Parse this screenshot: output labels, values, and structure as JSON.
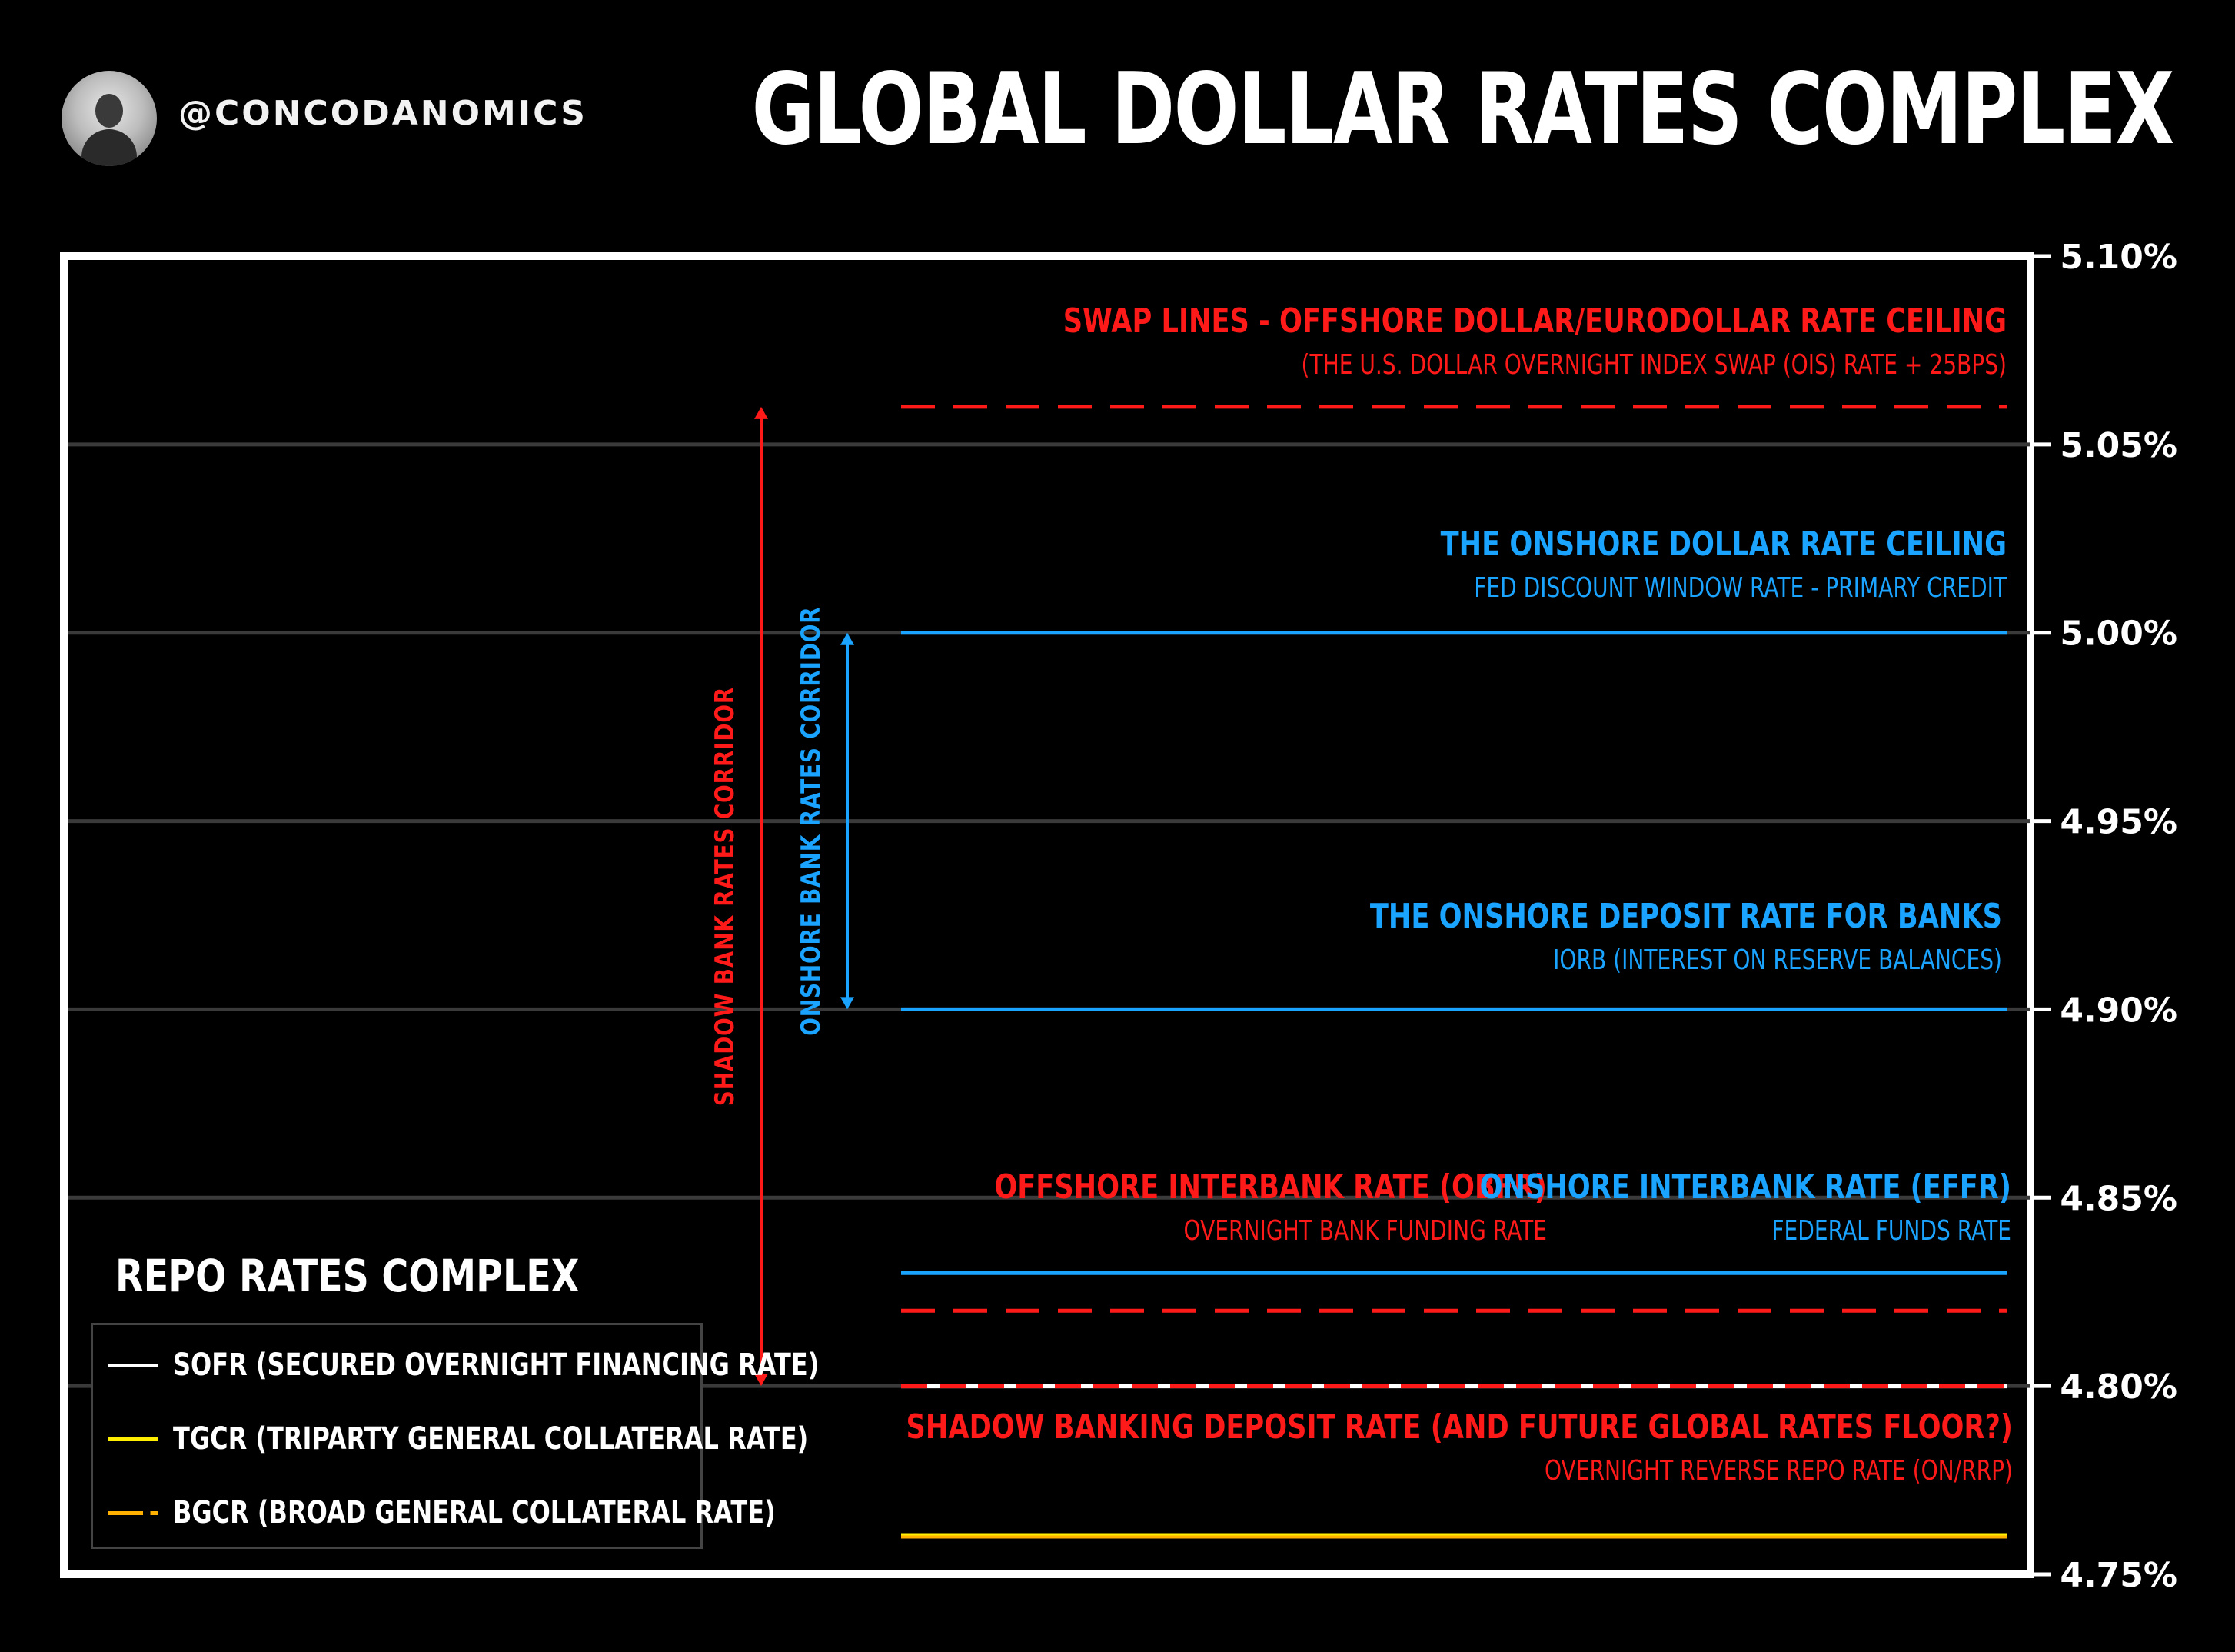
{
  "header": {
    "handle": "@CONCODANOMICS",
    "title": "GLOBAL DOLLAR RATES COMPLEX"
  },
  "colors": {
    "red": "#ff1a1a",
    "blue": "#1aa3ff",
    "white": "#ffffff",
    "yellow": "#ffee00",
    "orange": "#ffb000",
    "grid": "#3a3a3a"
  },
  "chart_data": {
    "type": "line",
    "ylim": [
      4.75,
      5.1
    ],
    "yticks": [
      "5.10%",
      "5.05%",
      "5.00%",
      "4.95%",
      "4.90%",
      "4.85%",
      "4.80%",
      "4.75%"
    ],
    "ytick_values": [
      5.1,
      5.05,
      5.0,
      4.95,
      4.9,
      4.85,
      4.8,
      4.75
    ],
    "grid": true,
    "rate_lines": [
      {
        "value": 5.06,
        "color": "red",
        "style": "dashed"
      },
      {
        "value": 5.0,
        "color": "blue",
        "style": "solid"
      },
      {
        "value": 4.9,
        "color": "blue",
        "style": "solid"
      },
      {
        "value": 4.83,
        "color": "blue",
        "style": "solid"
      },
      {
        "value": 4.82,
        "color": "red",
        "style": "dashed"
      },
      {
        "value": 4.8,
        "color": "red",
        "style": "dashed-white"
      },
      {
        "value": 4.76,
        "color": "orange",
        "style": "solid"
      }
    ],
    "annotations": [
      {
        "title": "SWAP LINES - OFFSHORE DOLLAR/EURODOLLAR RATE CEILING",
        "subtitle": "(THE U.S. DOLLAR OVERNIGHT INDEX SWAP (OIS) RATE + 25BPS)",
        "color": "red"
      },
      {
        "title": "THE ONSHORE DOLLAR RATE CEILING",
        "subtitle": "FED DISCOUNT WINDOW RATE - PRIMARY CREDIT",
        "color": "blue"
      },
      {
        "title": "THE ONSHORE DEPOSIT RATE FOR BANKS",
        "subtitle": "IORB (INTEREST ON RESERVE BALANCES)",
        "color": "blue"
      },
      {
        "title": "OFFSHORE INTERBANK RATE (OBFR)",
        "subtitle": "OVERNIGHT BANK FUNDING RATE",
        "color": "red"
      },
      {
        "title": "ONSHORE INTERBANK RATE (EFFR)",
        "subtitle": "FEDERAL FUNDS RATE",
        "color": "blue"
      },
      {
        "title": "SHADOW BANKING DEPOSIT RATE (AND FUTURE GLOBAL RATES FLOOR?)",
        "subtitle": "OVERNIGHT REVERSE REPO RATE (ON/RRP)",
        "color": "red"
      }
    ],
    "corridors": [
      {
        "label": "SHADOW BANK RATES CORRIDOR",
        "from": 4.8,
        "to": 5.06,
        "color": "red"
      },
      {
        "label": "ONSHORE BANK RATES CORRIDOR",
        "from": 4.9,
        "to": 5.0,
        "color": "blue"
      }
    ]
  },
  "legend": {
    "title": "REPO RATES COMPLEX",
    "items": [
      {
        "label": "SOFR (SECURED OVERNIGHT FINANCING RATE)",
        "color": "white"
      },
      {
        "label": "TGCR (TRIPARTY GENERAL COLLATERAL RATE)",
        "color": "yellow"
      },
      {
        "label": "BGCR (BROAD GENERAL COLLATERAL RATE)",
        "color": "orange"
      }
    ]
  }
}
